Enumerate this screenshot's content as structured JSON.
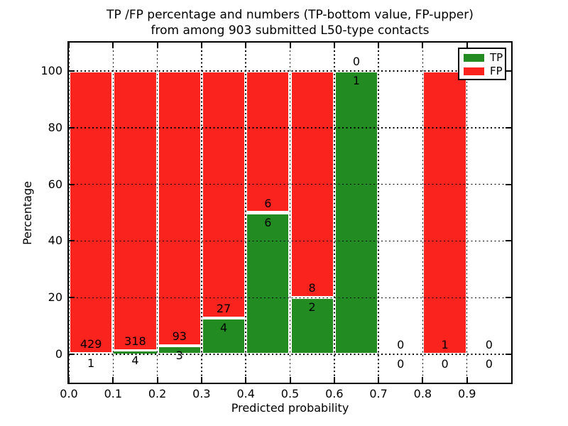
{
  "chart_data": {
    "type": "bar",
    "stacked": true,
    "title_line1": "TP /FP percentage and numbers (TP-bottom value, FP-upper)",
    "title_line2": "from among 903 submitted L50-type contacts",
    "xlabel": "Predicted probability",
    "ylabel": "Percentage",
    "xlim": [
      0.0,
      1.0
    ],
    "ylim": [
      -10,
      110
    ],
    "x_ticks": [
      0.0,
      0.1,
      0.2,
      0.3,
      0.4,
      0.5,
      0.6,
      0.7,
      0.8,
      0.9
    ],
    "x_tick_labels": [
      "0.0",
      "0.1",
      "0.2",
      "0.3",
      "0.4",
      "0.5",
      "0.6",
      "0.7",
      "0.8",
      "0.9"
    ],
    "y_ticks": [
      0,
      20,
      40,
      60,
      80,
      100
    ],
    "y_tick_labels": [
      "0",
      "20",
      "40",
      "60",
      "80",
      "100"
    ],
    "grid": {
      "style": "dotted",
      "color": "#000000",
      "above_bars": true
    },
    "total_contacts": 903,
    "bin_width": 0.1,
    "bar_edge_color": "#ffffff",
    "colors": {
      "tp": "#228b22",
      "fp": "#fa231e"
    },
    "bins": [
      {
        "range": [
          0.0,
          0.1
        ],
        "tp": 1,
        "fp": 429,
        "tp_label": "1",
        "fp_label": "429"
      },
      {
        "range": [
          0.1,
          0.2
        ],
        "tp": 4,
        "fp": 318,
        "tp_label": "4",
        "fp_label": "318"
      },
      {
        "range": [
          0.2,
          0.3
        ],
        "tp": 3,
        "fp": 93,
        "tp_label": "3",
        "fp_label": "93"
      },
      {
        "range": [
          0.3,
          0.4
        ],
        "tp": 4,
        "fp": 27,
        "tp_label": "4",
        "fp_label": "27"
      },
      {
        "range": [
          0.4,
          0.5
        ],
        "tp": 6,
        "fp": 6,
        "tp_label": "6",
        "fp_label": "6"
      },
      {
        "range": [
          0.5,
          0.6
        ],
        "tp": 2,
        "fp": 8,
        "tp_label": "2",
        "fp_label": "8"
      },
      {
        "range": [
          0.6,
          0.7
        ],
        "tp": 1,
        "fp": 0,
        "tp_label": "1",
        "fp_label": "0"
      },
      {
        "range": [
          0.7,
          0.8
        ],
        "tp": 0,
        "fp": 0,
        "tp_label": "0",
        "fp_label": "0"
      },
      {
        "range": [
          0.8,
          0.9
        ],
        "tp": 0,
        "fp": 1,
        "tp_label": "0",
        "fp_label": "1"
      },
      {
        "range": [
          0.9,
          1.0
        ],
        "tp": 0,
        "fp": 0,
        "tp_label": "0",
        "fp_label": "0"
      }
    ],
    "series": [
      {
        "name": "TP",
        "color": "#228b22",
        "values": [
          1,
          4,
          3,
          4,
          6,
          2,
          1,
          0,
          0,
          0
        ]
      },
      {
        "name": "FP",
        "color": "#fa231e",
        "values": [
          429,
          318,
          93,
          27,
          6,
          8,
          0,
          0,
          1,
          0
        ]
      }
    ],
    "legend": {
      "position": "upper right",
      "entries": [
        {
          "label": "TP",
          "color": "#228b22"
        },
        {
          "label": "FP",
          "color": "#fa231e"
        }
      ]
    }
  }
}
